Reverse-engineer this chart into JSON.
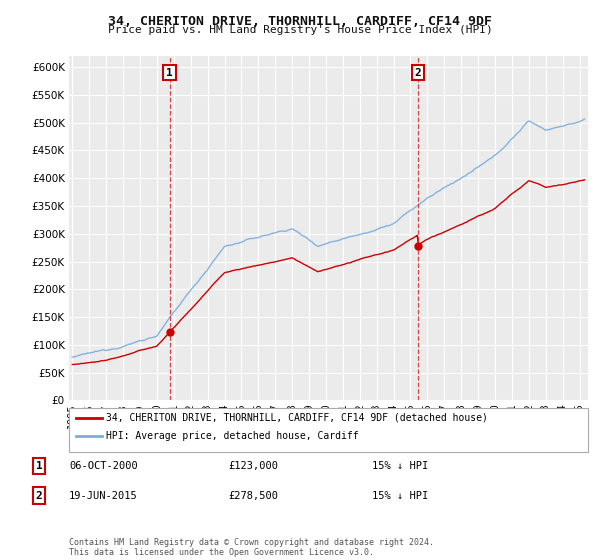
{
  "title": "34, CHERITON DRIVE, THORNHILL, CARDIFF, CF14 9DF",
  "subtitle": "Price paid vs. HM Land Registry's House Price Index (HPI)",
  "legend_label_red": "34, CHERITON DRIVE, THORNHILL, CARDIFF, CF14 9DF (detached house)",
  "legend_label_blue": "HPI: Average price, detached house, Cardiff",
  "transaction1_date": "06-OCT-2000",
  "transaction1_price": 123000,
  "transaction1_label": "1",
  "transaction1_note": "15% ↓ HPI",
  "transaction2_date": "19-JUN-2015",
  "transaction2_price": 278500,
  "transaction2_label": "2",
  "transaction2_note": "15% ↓ HPI",
  "footer": "Contains HM Land Registry data © Crown copyright and database right 2024.\nThis data is licensed under the Open Government Licence v3.0.",
  "xmin": 1994.8,
  "xmax": 2025.5,
  "ymin": 0,
  "ymax": 620000,
  "yticks": [
    0,
    50000,
    100000,
    150000,
    200000,
    250000,
    300000,
    350000,
    400000,
    450000,
    500000,
    550000,
    600000
  ],
  "background_color": "#ffffff",
  "plot_bg_color": "#ebebeb",
  "grid_color": "#ffffff",
  "red_color": "#cc0000",
  "blue_color": "#7aadde",
  "t1_year": 2000.75,
  "t2_year": 2015.45,
  "t1_price": 123000,
  "t2_price": 278500,
  "marker1_y": 590000,
  "marker2_y": 590000
}
